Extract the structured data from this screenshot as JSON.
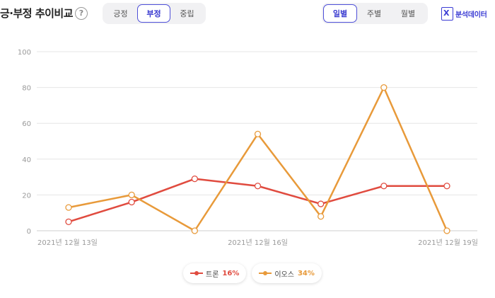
{
  "header": {
    "title": "긍·부정 추이비교",
    "help_icon": "?",
    "sentiment_tabs": [
      {
        "label": "긍정",
        "active": false
      },
      {
        "label": "부정",
        "active": true
      },
      {
        "label": "중립",
        "active": false
      }
    ],
    "period_tabs": [
      {
        "label": "일별",
        "active": true
      },
      {
        "label": "주별",
        "active": false
      },
      {
        "label": "월별",
        "active": false
      }
    ],
    "analysis_link": {
      "icon": "excel-icon",
      "label": "분석데이터"
    }
  },
  "legend": [
    {
      "name": "트론",
      "percent": "16%",
      "color": "#e04b3f"
    },
    {
      "name": "이오스",
      "percent": "34%",
      "color": "#e89a3a"
    }
  ],
  "chart_data": {
    "type": "line",
    "x": [
      "2021-12-13",
      "2021-12-14",
      "2021-12-15",
      "2021-12-16",
      "2021-12-17",
      "2021-12-18",
      "2021-12-19"
    ],
    "x_tick_labels": [
      "2021년 12월 13일",
      "2021년 12월 16일",
      "2021년 12월 19일"
    ],
    "y_ticks": [
      0,
      20,
      40,
      60,
      80,
      100
    ],
    "ylim": [
      0,
      100
    ],
    "grid": true,
    "legend_position": "bottom",
    "series": [
      {
        "name": "트론",
        "color": "#e04b3f",
        "values": [
          5,
          16,
          29,
          25,
          15,
          25,
          25
        ]
      },
      {
        "name": "이오스",
        "color": "#e89a3a",
        "values": [
          13,
          20,
          0,
          54,
          8,
          80,
          0
        ]
      }
    ]
  }
}
